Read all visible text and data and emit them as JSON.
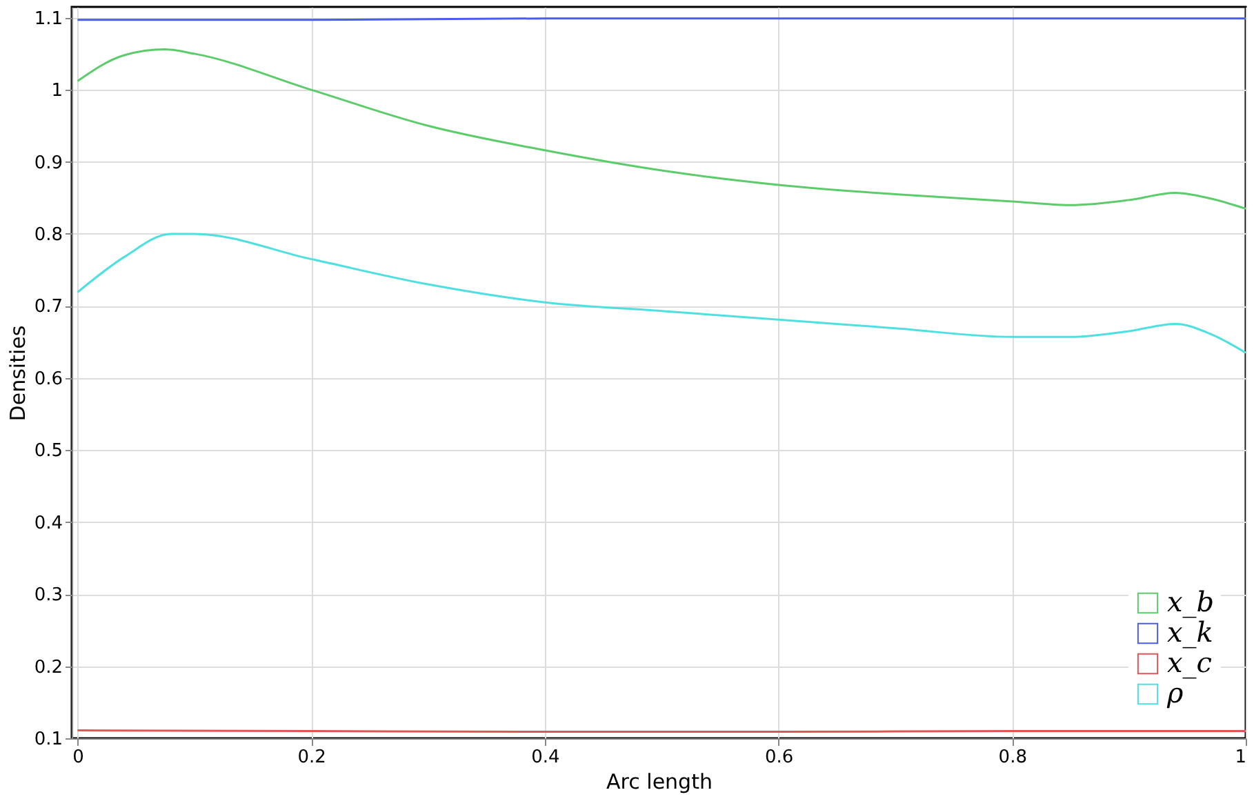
{
  "chart_data": {
    "type": "line",
    "xlabel": "Arc length",
    "ylabel": "Densities",
    "xlim": [
      -0.005,
      1
    ],
    "ylim": [
      0.1,
      1.115
    ],
    "xticks": [
      0,
      0.2,
      0.4,
      0.6,
      0.8,
      1
    ],
    "yticks": [
      0.1,
      0.2,
      0.3,
      0.4,
      0.5,
      0.6,
      0.7,
      0.8,
      0.9,
      1,
      1.1
    ],
    "grid": true,
    "legend": "bottom right",
    "line_style": "solid",
    "marker": "none",
    "series": [
      {
        "name": "x_b",
        "color": "#5ccc6a",
        "x": [
          0,
          0.04,
          0.075,
          0.1,
          0.2,
          0.3,
          0.4,
          0.5,
          0.6,
          0.7,
          0.8,
          0.85,
          0.9,
          0.94,
          0.97,
          1
        ],
        "values": [
          1.012,
          1.048,
          1.056,
          1.05,
          1.0,
          0.95,
          0.916,
          0.888,
          0.868,
          0.855,
          0.845,
          0.84,
          0.847,
          0.857,
          0.849,
          0.835
        ]
      },
      {
        "name": "x_k",
        "color": "#4a5cf0",
        "x": [
          0,
          0.2,
          0.4,
          0.6,
          0.8,
          1
        ],
        "values": [
          1.097,
          1.097,
          1.099,
          1.099,
          1.099,
          1.099
        ]
      },
      {
        "name": "x_c",
        "color": "#e05555",
        "x": [
          0,
          0.2,
          0.4,
          0.6,
          0.8,
          1
        ],
        "values": [
          0.111,
          0.11,
          0.109,
          0.109,
          0.11,
          0.11
        ]
      },
      {
        "name": "ρ",
        "color": "#4ee0e0",
        "x": [
          0,
          0.04,
          0.08,
          0.1,
          0.2,
          0.3,
          0.4,
          0.5,
          0.6,
          0.7,
          0.8,
          0.85,
          0.9,
          0.94,
          0.97,
          1
        ],
        "values": [
          0.719,
          0.768,
          0.8,
          0.8,
          0.765,
          0.73,
          0.705,
          0.693,
          0.681,
          0.669,
          0.657,
          0.657,
          0.665,
          0.675,
          0.661,
          0.635
        ]
      }
    ]
  }
}
